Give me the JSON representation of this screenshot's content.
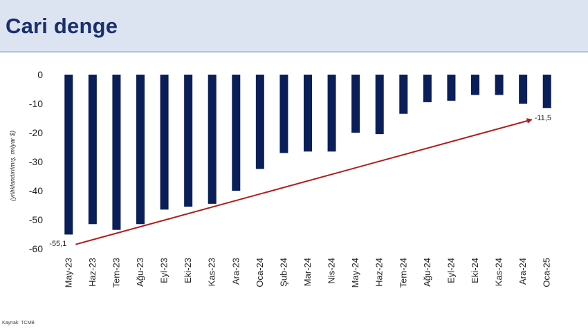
{
  "header": {
    "title": "Cari denge"
  },
  "source": "Kaynak: TCMB",
  "colors": {
    "bar": "#0a1e5a",
    "trend": "#b01e1e",
    "header_bg": "#dce3f1",
    "title": "#1a2f6b"
  },
  "chart_data": {
    "type": "bar",
    "title": "",
    "ylabel": "(yıllıklandırılmış, milyar $)",
    "xlabel": "",
    "ylim": [
      -60,
      0
    ],
    "yticks": [
      0,
      -10,
      -20,
      -30,
      -40,
      -50,
      -60
    ],
    "grid": false,
    "categories": [
      "May-23",
      "Haz-23",
      "Tem-23",
      "Ağu-23",
      "Eyl-23",
      "Eki-23",
      "Kas-23",
      "Ara-23",
      "Oca-24",
      "Şub-24",
      "Mar-24",
      "Nis-24",
      "May-24",
      "Haz-24",
      "Tem-24",
      "Ağu-24",
      "Eyl-24",
      "Eki-24",
      "Kas-24",
      "Ara-24",
      "Oca-25"
    ],
    "values": [
      -55.1,
      -51.5,
      -53.5,
      -51.5,
      -46.5,
      -45.5,
      -44.5,
      -40,
      -32.5,
      -27,
      -26.5,
      -26.5,
      -20,
      -20.5,
      -13.5,
      -9.5,
      -9,
      -7,
      -7,
      -10,
      -11.5
    ],
    "annotations": [
      {
        "category": "May-23",
        "label": "-55,1"
      },
      {
        "category": "Oca-25",
        "label": "-11,5"
      }
    ],
    "trend_arrow": {
      "from": "May-23",
      "from_value": -58.5,
      "to": "Oca-25",
      "to_value": -15.5
    }
  }
}
